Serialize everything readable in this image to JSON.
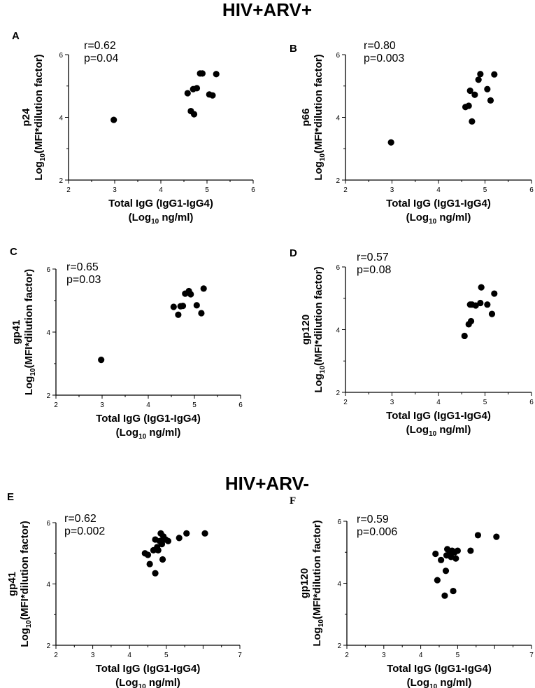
{
  "sections": [
    {
      "title": "HIV+ARV+"
    },
    {
      "title": "HIV+ARV-"
    }
  ],
  "axis_text": {
    "xlabel_line1": "Total IgG (IgG1-IgG4)",
    "xlabel_line2_pre": "(Log",
    "xlabel_line2_sub": "10",
    "xlabel_line2_post": " ng/ml)",
    "ylabel_pre": "Log",
    "ylabel_sub": "10",
    "ylabel_post": "(MFI*dilution factor)"
  },
  "colors": {
    "point": "#000000",
    "axis": "#000000"
  },
  "chart_data": [
    {
      "type": "scatter",
      "panel": "A",
      "antigen": "p24",
      "r_text": "r=0.62",
      "p_text": "p=0.04",
      "xlim": [
        2,
        6
      ],
      "ylim": [
        2,
        6
      ],
      "xticks": [
        2,
        3,
        4,
        5,
        6
      ],
      "yticks": [
        2,
        4,
        6
      ],
      "x": [
        2.98,
        4.58,
        4.65,
        4.7,
        4.72,
        4.78,
        4.85,
        4.9,
        5.05,
        5.12,
        5.2
      ],
      "y": [
        3.92,
        4.77,
        4.2,
        4.9,
        4.1,
        4.93,
        5.4,
        5.4,
        4.73,
        4.7,
        5.38
      ]
    },
    {
      "type": "scatter",
      "panel": "B",
      "antigen": "p66",
      "r_text": "r=0.80",
      "p_text": "p=0.003",
      "xlim": [
        2,
        6
      ],
      "ylim": [
        2,
        6
      ],
      "xticks": [
        2,
        3,
        4,
        5,
        6
      ],
      "yticks": [
        2,
        4,
        6
      ],
      "x": [
        2.98,
        4.58,
        4.65,
        4.68,
        4.72,
        4.78,
        4.86,
        4.9,
        5.05,
        5.12,
        5.2
      ],
      "y": [
        3.2,
        4.33,
        4.37,
        4.85,
        3.87,
        4.72,
        5.2,
        5.38,
        4.9,
        4.54,
        5.37
      ]
    },
    {
      "type": "scatter",
      "panel": "C",
      "antigen": "gp41",
      "r_text": "r=0.65",
      "p_text": "p=0.03",
      "xlim": [
        2,
        6
      ],
      "ylim": [
        2,
        6
      ],
      "xticks": [
        2,
        3,
        4,
        5,
        6
      ],
      "yticks": [
        2,
        4,
        6
      ],
      "x": [
        2.98,
        4.55,
        4.65,
        4.7,
        4.75,
        4.8,
        4.88,
        4.92,
        5.05,
        5.15,
        5.2
      ],
      "y": [
        3.12,
        4.8,
        4.55,
        4.82,
        4.83,
        5.22,
        5.3,
        5.2,
        4.85,
        4.6,
        5.38
      ]
    },
    {
      "type": "scatter",
      "panel": "D",
      "antigen": "gp120",
      "r_text": "r=0.57",
      "p_text": "p=0.08",
      "xlim": [
        2,
        6
      ],
      "ylim": [
        2,
        6
      ],
      "xticks": [
        2,
        3,
        4,
        5,
        6
      ],
      "yticks": [
        2,
        4,
        6
      ],
      "x": [
        4.56,
        4.65,
        4.68,
        4.7,
        4.72,
        4.8,
        4.9,
        4.92,
        5.05,
        5.15,
        5.2
      ],
      "y": [
        3.8,
        4.17,
        4.8,
        4.27,
        4.8,
        4.77,
        4.85,
        5.35,
        4.8,
        4.5,
        5.15
      ]
    },
    {
      "type": "scatter",
      "panel": "E",
      "antigen": "gp41",
      "r_text": "r=0.62",
      "p_text": "p=0.002",
      "xlim": [
        2,
        7
      ],
      "ylim": [
        2,
        6
      ],
      "xticks": [
        2,
        3,
        4,
        5,
        7
      ],
      "yticks": [
        2,
        4,
        6
      ],
      "x": [
        4.42,
        4.5,
        4.55,
        4.65,
        4.7,
        4.7,
        4.75,
        4.78,
        4.82,
        4.85,
        4.88,
        4.9,
        4.92,
        4.98,
        5.05,
        5.35,
        5.55,
        6.05
      ],
      "y": [
        5.0,
        4.95,
        4.65,
        5.1,
        4.35,
        5.45,
        5.2,
        5.1,
        5.4,
        5.65,
        5.3,
        4.8,
        5.55,
        5.45,
        5.4,
        5.5,
        5.65,
        5.65
      ]
    },
    {
      "type": "scatter",
      "panel": "F",
      "antigen": "gp120",
      "r_text": "r=0.59",
      "p_text": "p=0.006",
      "xlim": [
        2,
        7
      ],
      "ylim": [
        2,
        6
      ],
      "xticks": [
        2,
        3,
        4,
        5,
        7
      ],
      "yticks": [
        2,
        4,
        6
      ],
      "x": [
        4.4,
        4.45,
        4.55,
        4.65,
        4.68,
        4.7,
        4.72,
        4.78,
        4.82,
        4.85,
        4.88,
        4.92,
        4.95,
        5.0,
        5.35,
        5.55,
        6.05
      ],
      "y": [
        4.95,
        4.1,
        4.75,
        3.6,
        4.4,
        4.9,
        5.1,
        4.95,
        4.85,
        5.05,
        3.75,
        5.0,
        4.8,
        5.05,
        5.05,
        5.55,
        5.5
      ]
    }
  ]
}
